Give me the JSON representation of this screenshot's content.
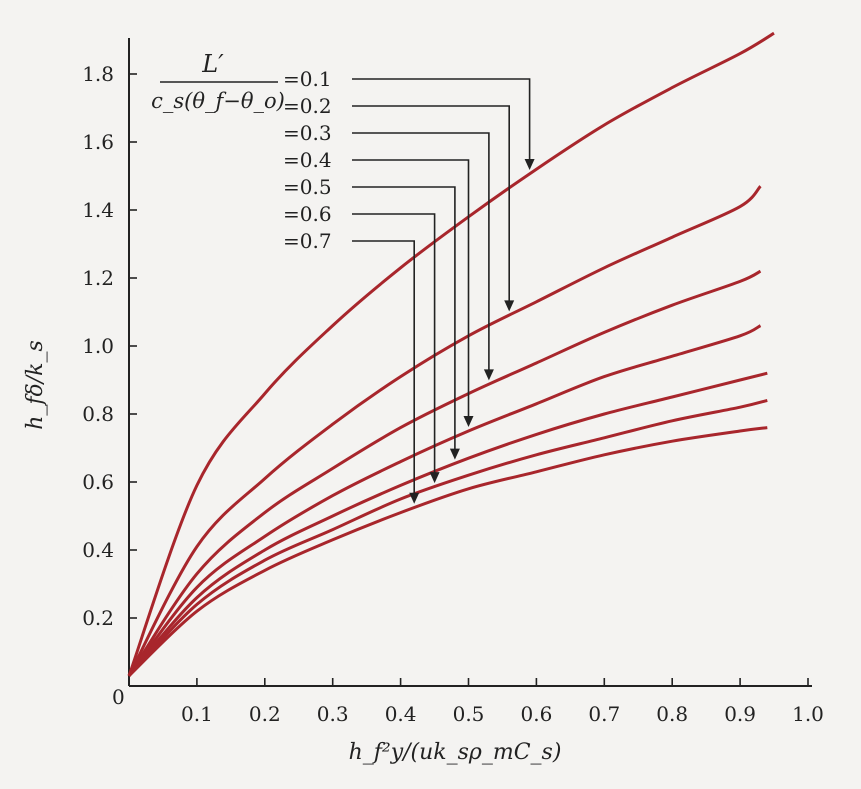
{
  "chart_data": {
    "type": "line",
    "title": "",
    "xlabel": "h_f²y/(uk_sρ_mC_s)",
    "ylabel": "h_fδ/k_s",
    "xlim": [
      0,
      1.0
    ],
    "ylim": [
      0,
      1.9
    ],
    "x_ticks": [
      "0.1",
      "0.2",
      "0.3",
      "0.4",
      "0.5",
      "0.6",
      "0.7",
      "0.8",
      "0.9",
      "1.0"
    ],
    "y_ticks": [
      "0.2",
      "0.4",
      "0.6",
      "0.8",
      "1.0",
      "1.2",
      "1.4",
      "1.6",
      "1.8"
    ],
    "origin_label": "0",
    "grid": false,
    "legend": {
      "numerator": "L′",
      "denominator": "c_s(θ_f−θ_o)",
      "position": "top-left"
    },
    "series": [
      {
        "name": "=0.1",
        "param": 0.1,
        "x": [
          0,
          0.1,
          0.2,
          0.3,
          0.4,
          0.5,
          0.6,
          0.7,
          0.8,
          0.9,
          0.95
        ],
        "y": [
          0.03,
          0.59,
          0.86,
          1.06,
          1.23,
          1.38,
          1.52,
          1.65,
          1.76,
          1.86,
          1.92
        ]
      },
      {
        "name": "=0.2",
        "param": 0.2,
        "x": [
          0,
          0.1,
          0.2,
          0.3,
          0.4,
          0.5,
          0.6,
          0.7,
          0.8,
          0.9,
          0.93
        ],
        "y": [
          0.03,
          0.41,
          0.61,
          0.77,
          0.91,
          1.03,
          1.13,
          1.23,
          1.32,
          1.41,
          1.47
        ]
      },
      {
        "name": "=0.3",
        "param": 0.3,
        "x": [
          0,
          0.1,
          0.2,
          0.3,
          0.4,
          0.5,
          0.6,
          0.7,
          0.8,
          0.9,
          0.93
        ],
        "y": [
          0.03,
          0.33,
          0.51,
          0.64,
          0.76,
          0.86,
          0.95,
          1.04,
          1.12,
          1.19,
          1.22
        ]
      },
      {
        "name": "=0.4",
        "param": 0.4,
        "x": [
          0,
          0.1,
          0.2,
          0.3,
          0.4,
          0.5,
          0.6,
          0.7,
          0.8,
          0.9,
          0.93
        ],
        "y": [
          0.03,
          0.29,
          0.44,
          0.56,
          0.66,
          0.75,
          0.83,
          0.91,
          0.97,
          1.03,
          1.06
        ]
      },
      {
        "name": "=0.5",
        "param": 0.5,
        "x": [
          0,
          0.1,
          0.2,
          0.3,
          0.4,
          0.5,
          0.6,
          0.7,
          0.8,
          0.9,
          0.94
        ],
        "y": [
          0.03,
          0.26,
          0.4,
          0.5,
          0.59,
          0.67,
          0.74,
          0.8,
          0.85,
          0.9,
          0.92
        ]
      },
      {
        "name": "=0.6",
        "param": 0.6,
        "x": [
          0,
          0.1,
          0.2,
          0.3,
          0.4,
          0.5,
          0.6,
          0.7,
          0.8,
          0.9,
          0.94
        ],
        "y": [
          0.03,
          0.24,
          0.37,
          0.46,
          0.55,
          0.62,
          0.68,
          0.73,
          0.78,
          0.82,
          0.84
        ]
      },
      {
        "name": "=0.7",
        "param": 0.7,
        "x": [
          0,
          0.1,
          0.2,
          0.3,
          0.4,
          0.5,
          0.6,
          0.7,
          0.8,
          0.9,
          0.94
        ],
        "y": [
          0.03,
          0.22,
          0.34,
          0.43,
          0.51,
          0.58,
          0.63,
          0.68,
          0.72,
          0.75,
          0.76
        ]
      }
    ],
    "colors": {
      "curve": "#a8262c",
      "axis": "#222222",
      "background": "#f4f3f1"
    }
  }
}
